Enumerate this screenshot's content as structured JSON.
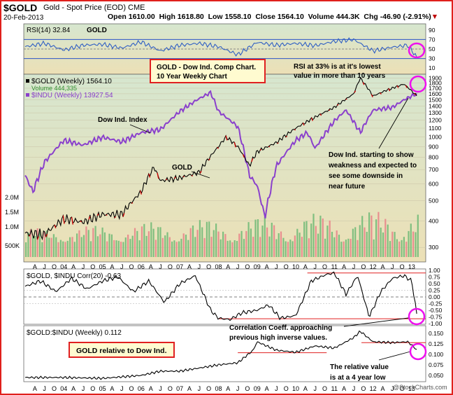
{
  "header": {
    "symbol": "$GOLD",
    "name": "Gold - Spot Price (EOD)",
    "exchange": "CME",
    "date": "20-Feb-2013",
    "open": "Open 1610.00",
    "high": "High 1618.80",
    "low": "Low 1558.10",
    "close": "Close 1564.10",
    "volume": "Volume 444.3K",
    "chg": "Chg -46.90 (-2.91%)",
    "chg_marker": "▼"
  },
  "watermark": "@StockCharts.com",
  "colors": {
    "gold_up": "#000000",
    "gold_down": "#d00000",
    "indu": "#8a40cc",
    "rsi": "#2f5fc4",
    "volume_up": "#7fbf7f",
    "volume_down": "#e88f8f",
    "bg_top": "#cfe0c8",
    "bg_bottom": "#eadbb0",
    "trend_line": "#e02020",
    "callout_box": "#e02020",
    "circle": "#ee10ee"
  },
  "chart_data": [
    {
      "type": "line",
      "title": "RSI(14) 32.84",
      "panel_label": "GOLD",
      "ylim": [
        0,
        100
      ],
      "y_ticks": [
        10,
        30,
        50,
        70,
        90
      ],
      "reference_lines": [
        30,
        50,
        70
      ],
      "x": [
        2003.0,
        2003.5,
        2004.0,
        2004.5,
        2005.0,
        2005.5,
        2006.0,
        2006.5,
        2007.0,
        2007.5,
        2008.0,
        2008.5,
        2009.0,
        2009.5,
        2010.0,
        2010.5,
        2011.0,
        2011.5,
        2012.0,
        2012.5,
        2012.9,
        2013.13
      ],
      "values": [
        55,
        62,
        48,
        58,
        60,
        52,
        65,
        46,
        58,
        62,
        55,
        38,
        64,
        58,
        62,
        57,
        66,
        70,
        46,
        54,
        58,
        33
      ],
      "annotation": "RSI at 33% is at it's lowest value in more than 10 years"
    },
    {
      "type": "line",
      "series": [
        {
          "name": "$GOLD (Weekly) 1564.10",
          "color": "#000000",
          "x": [
            2003.0,
            2003.5,
            2004.0,
            2004.5,
            2005.0,
            2005.5,
            2006.0,
            2006.33,
            2006.5,
            2007.0,
            2007.5,
            2008.0,
            2008.2,
            2008.5,
            2008.8,
            2009.0,
            2009.5,
            2010.0,
            2010.5,
            2011.0,
            2011.5,
            2011.67,
            2012.0,
            2012.3,
            2012.8,
            2013.13
          ],
          "values": [
            350,
            345,
            410,
            395,
            430,
            430,
            550,
            720,
            620,
            640,
            680,
            900,
            1000,
            900,
            730,
            850,
            940,
            1100,
            1240,
            1380,
            1600,
            1900,
            1560,
            1650,
            1780,
            1564
          ]
        },
        {
          "name": "$INDU (Weekly) 13927.54",
          "color": "#8a40cc",
          "x": [
            2003.0,
            2003.2,
            2003.5,
            2004.0,
            2004.5,
            2005.0,
            2005.5,
            2006.0,
            2006.5,
            2007.0,
            2007.5,
            2007.8,
            2008.0,
            2008.5,
            2008.8,
            2009.0,
            2009.2,
            2009.5,
            2010.0,
            2010.3,
            2010.5,
            2011.0,
            2011.3,
            2011.67,
            2012.0,
            2012.5,
            2012.8,
            2013.13
          ],
          "values": [
            8500,
            7700,
            9200,
            10500,
            10200,
            10700,
            10400,
            11000,
            11200,
            12500,
            13500,
            14000,
            12500,
            11400,
            8500,
            8000,
            6600,
            9000,
            10500,
            11000,
            10000,
            11800,
            12600,
            11000,
            12600,
            12800,
            13400,
            13927
          ]
        }
      ],
      "volume_label": "Volume 444,335",
      "y_ticks_right": [
        300,
        400,
        500,
        600,
        700,
        800,
        900,
        1000,
        1100,
        1200,
        1300,
        1400,
        1500,
        1600,
        1700,
        1800,
        1900
      ],
      "y_labels_left": [
        "2.0M",
        "1.5M",
        "1.0M",
        "500K"
      ],
      "x_labels": [
        "A",
        "J",
        "O",
        "04",
        "A",
        "J",
        "O",
        "05",
        "A",
        "J",
        "O",
        "06",
        "A",
        "J",
        "O",
        "07",
        "A",
        "J",
        "O",
        "08",
        "A",
        "J",
        "O",
        "09",
        "A",
        "J",
        "O",
        "10",
        "A",
        "J",
        "O",
        "11",
        "A",
        "J",
        "O",
        "12",
        "A",
        "J",
        "O",
        "13"
      ],
      "callout": "GOLD - Dow Ind. Comp Chart. 10 Year Weekly Chart",
      "annotations": [
        "Dow Ind. Index",
        "GOLD",
        "Dow Ind. starting to show weakness and expected to see some downside in near future"
      ]
    },
    {
      "type": "line",
      "title": "$GOLD, $INDU Corr(20) -0.63",
      "ylim": [
        -1.0,
        1.0
      ],
      "y_ticks": [
        1.0,
        0.75,
        0.5,
        0.25,
        0.0,
        -0.25,
        -0.5,
        -0.75,
        -1.0
      ],
      "x": [
        2003.0,
        2003.4,
        2003.8,
        2004.2,
        2004.6,
        2005.0,
        2005.4,
        2005.8,
        2006.2,
        2006.6,
        2007.0,
        2007.4,
        2007.8,
        2008.0,
        2008.3,
        2008.6,
        2009.0,
        2009.3,
        2009.6,
        2010.0,
        2010.4,
        2010.8,
        2011.0,
        2011.3,
        2011.6,
        2011.9,
        2012.2,
        2012.5,
        2012.8,
        2013.0,
        2013.13
      ],
      "values": [
        0.4,
        0.6,
        0.2,
        0.7,
        0.3,
        0.6,
        0.75,
        0.2,
        0.6,
        -0.2,
        0.5,
        0.8,
        -0.5,
        -0.8,
        -0.85,
        -0.6,
        -0.5,
        -0.3,
        -0.8,
        -0.7,
        0.6,
        0.85,
        0.9,
        0.1,
        0.8,
        -0.75,
        0.2,
        0.7,
        0.8,
        0.6,
        -0.63
      ],
      "annotation": "Correlation Coeff. approaching previous high inverse values."
    },
    {
      "type": "line",
      "title": "$GOLD:$INDU (Weekly) 0.112",
      "ylim": [
        0.04,
        0.16
      ],
      "y_ticks": [
        0.15,
        0.125,
        0.1,
        0.075,
        0.05
      ],
      "x": [
        2003.0,
        2004.0,
        2005.0,
        2006.0,
        2006.5,
        2007.0,
        2008.0,
        2008.5,
        2008.9,
        2009.0,
        2009.5,
        2010.0,
        2010.5,
        2011.0,
        2011.5,
        2011.67,
        2012.0,
        2012.5,
        2012.9,
        2013.13
      ],
      "values": [
        0.045,
        0.045,
        0.043,
        0.05,
        0.06,
        0.06,
        0.075,
        0.08,
        0.11,
        0.13,
        0.11,
        0.105,
        0.12,
        0.115,
        0.14,
        0.155,
        0.13,
        0.128,
        0.13,
        0.112
      ],
      "x_labels": [
        "A",
        "J",
        "O",
        "04",
        "A",
        "J",
        "O",
        "05",
        "A",
        "J",
        "O",
        "06",
        "A",
        "J",
        "O",
        "07",
        "A",
        "J",
        "O",
        "08",
        "A",
        "J",
        "O",
        "09",
        "A",
        "J",
        "O",
        "10",
        "A",
        "J",
        "O",
        "11",
        "A",
        "J",
        "O",
        "12",
        "A",
        "J",
        "O",
        "13"
      ],
      "callout": "GOLD relative to Dow Ind.",
      "annotation": "The relative value is at a 4 year low"
    }
  ]
}
